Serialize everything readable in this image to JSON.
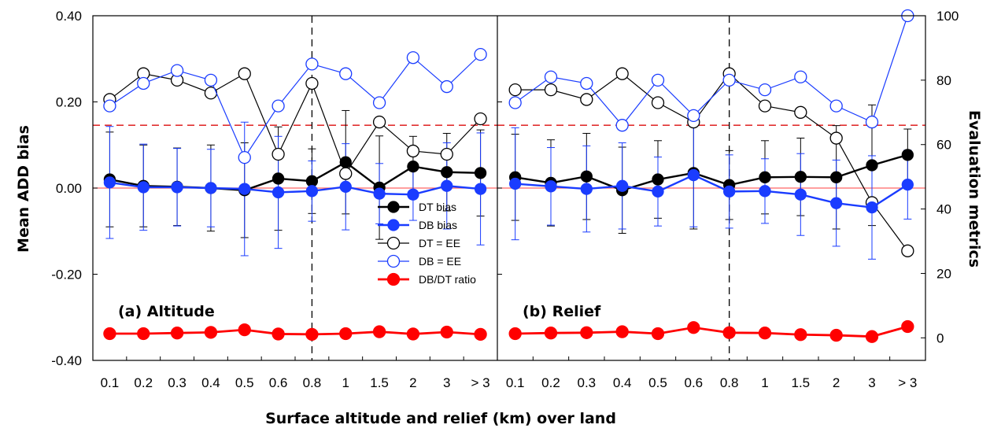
{
  "chart_data": {
    "type": "line",
    "xlabel": "Surface altitude and relief (km) over land",
    "ylabel_left": "Mean ADD bias",
    "ylabel_right": "Evaluation metrics",
    "ylim_left": [
      -0.4,
      0.4
    ],
    "yticks_left": [
      "0.40",
      "0.20",
      "0.00",
      "-0.20",
      "-0.40"
    ],
    "ylim_right": [
      -7,
      100
    ],
    "yticks_right": [
      "100",
      "80",
      "60",
      "40",
      "20",
      "0"
    ],
    "categories": [
      "0.1",
      "0.2",
      "0.3",
      "0.4",
      "0.5",
      "0.6",
      "0.8",
      "1",
      "1.5",
      "2",
      "3",
      "> 3"
    ],
    "reference_lines": {
      "zero_bias_color": "#ff6666",
      "ee_threshold_right": 66,
      "ee_threshold_color": "#e03030",
      "divider_category": "0.8"
    },
    "legend": {
      "placement": "center",
      "entries": [
        "DT bias",
        "DB bias",
        "DT = EE",
        "DB = EE",
        "DB/DT ratio"
      ]
    },
    "colors": {
      "black": "#000000",
      "blue": "#1a3cff",
      "red": "#ff0000"
    },
    "panels": [
      {
        "label": "(a) Altitude",
        "series": [
          {
            "name": "DT bias",
            "axis": "left",
            "values": [
              0.02,
              0.005,
              0.003,
              0.0,
              -0.005,
              0.022,
              0.016,
              0.06,
              0.001,
              0.05,
              0.037,
              0.035
            ],
            "errors": [
              0.11,
              0.095,
              0.09,
              0.1,
              0.11,
              0.12,
              0.075,
              0.12,
              0.12,
              0.07,
              0.09,
              0.1
            ]
          },
          {
            "name": "DB bias",
            "axis": "left",
            "values": [
              0.013,
              0.002,
              0.002,
              0.0,
              -0.002,
              -0.01,
              -0.007,
              0.003,
              -0.013,
              -0.015,
              0.005,
              -0.002
            ],
            "errors": [
              0.13,
              0.1,
              0.09,
              0.09,
              0.155,
              0.13,
              0.07,
              0.1,
              0.07,
              0.06,
              0.1,
              0.13
            ]
          },
          {
            "name": "DT = EE",
            "axis": "right",
            "values": [
              74,
              82,
              80,
              76,
              82,
              57,
              79,
              51,
              67,
              58,
              57,
              68
            ]
          },
          {
            "name": "DB = EE",
            "axis": "right",
            "values": [
              72,
              79,
              83,
              80,
              56,
              72,
              85,
              82,
              73,
              87,
              78,
              88
            ]
          },
          {
            "name": "DB/DT ratio",
            "axis": "right",
            "values": [
              1.3,
              1.3,
              1.5,
              1.7,
              2.5,
              1.2,
              1.1,
              1.3,
              1.9,
              1.2,
              1.8,
              1.1
            ]
          }
        ]
      },
      {
        "label": "(b) Relief",
        "series": [
          {
            "name": "DT bias",
            "axis": "left",
            "values": [
              0.025,
              0.012,
              0.027,
              -0.005,
              0.02,
              0.035,
              0.007,
              0.025,
              0.026,
              0.025,
              0.053,
              0.077
            ],
            "errors": [
              0.1,
              0.1,
              0.1,
              0.1,
              0.09,
              0.13,
              0.08,
              0.085,
              0.09,
              0.12,
              0.14,
              0.06
            ]
          },
          {
            "name": "DB bias",
            "axis": "left",
            "values": [
              0.01,
              0.004,
              -0.002,
              0.005,
              -0.008,
              0.03,
              -0.008,
              -0.007,
              -0.015,
              -0.035,
              -0.045,
              0.008
            ],
            "errors": [
              0.13,
              0.09,
              0.1,
              0.1,
              0.08,
              0.12,
              0.085,
              0.075,
              0.095,
              0.1,
              0.12,
              0.08
            ]
          },
          {
            "name": "DT = EE",
            "axis": "right",
            "values": [
              77,
              77,
              74,
              82,
              73,
              67,
              82,
              72,
              70,
              62,
              42,
              27
            ]
          },
          {
            "name": "DB = EE",
            "axis": "right",
            "values": [
              73,
              81,
              79,
              66,
              80,
              69,
              80,
              77,
              81,
              72,
              67,
              100
            ]
          },
          {
            "name": "DB/DT ratio",
            "axis": "right",
            "values": [
              1.3,
              1.5,
              1.6,
              1.9,
              1.3,
              3.2,
              1.6,
              1.5,
              1.0,
              0.8,
              0.4,
              3.5
            ]
          }
        ]
      }
    ]
  }
}
